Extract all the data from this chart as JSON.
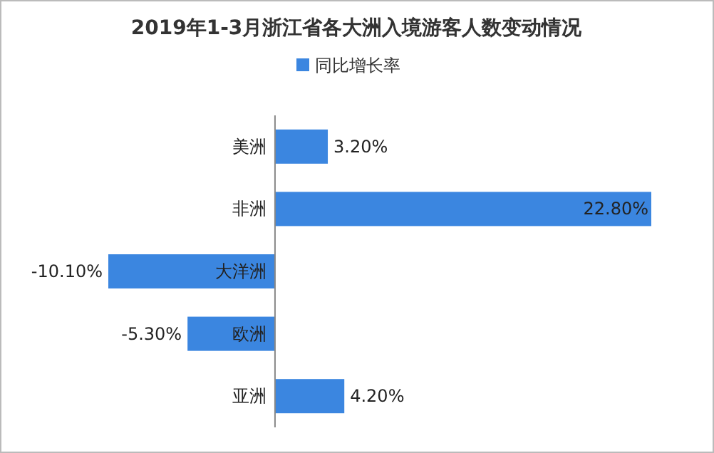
{
  "chart_data": {
    "type": "bar",
    "orientation": "horizontal",
    "title": "2019年1-3月浙江省各大洲入境游客人数变动情况",
    "categories": [
      "美洲",
      "非洲",
      "大洋洲",
      "欧洲",
      "亚洲"
    ],
    "legend": "top",
    "series": [
      {
        "name": "同比增长率",
        "color": "#3b86e0",
        "values": [
          3.2,
          22.8,
          -10.1,
          -5.3,
          4.2
        ],
        "value_labels": [
          "3.20%",
          "22.80%",
          "-10.10%",
          "-5.30%",
          "4.20%"
        ]
      }
    ]
  }
}
